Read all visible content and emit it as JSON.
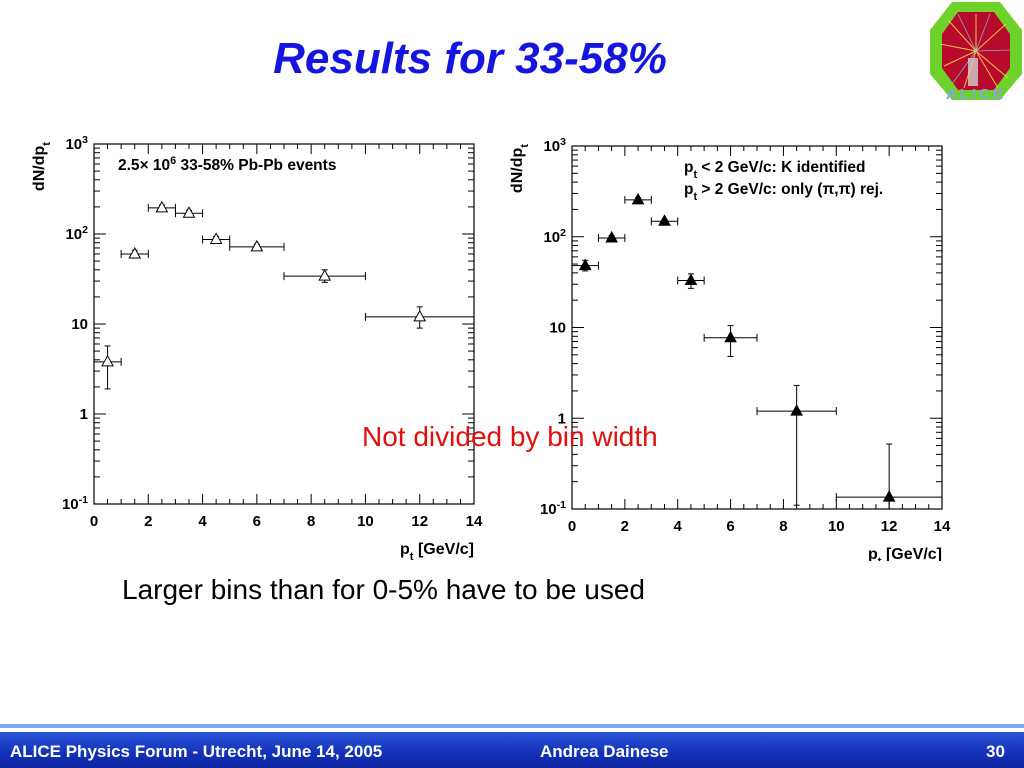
{
  "slide": {
    "title": "Results for 33-58%",
    "note": "Not divided by bin width",
    "caption": "Larger bins than for 0-5% have to be used",
    "logo_text": "ALICE"
  },
  "footer": {
    "left": "ALICE Physics Forum - Utrecht,  June 14, 2005",
    "author": "Andrea Dainese",
    "page": "30"
  },
  "colors": {
    "title": "#1515e0",
    "note": "#e01010",
    "footer": "#1a3cc8"
  },
  "chart_data": [
    {
      "type": "scatter",
      "scale": "log-y",
      "marker": "open-triangle",
      "xlabel": "p",
      "xlabel_sub": "t",
      "xlabel_rest": " [GeV/c]",
      "ylabel": "dN/dp",
      "ylabel_sub": "t",
      "xlim": [
        0,
        14
      ],
      "ylim": [
        0.1,
        1000
      ],
      "x_ticks": [
        "0",
        "2",
        "4",
        "6",
        "8",
        "10",
        "12",
        "14"
      ],
      "y_ticks": [
        {
          "v": 0.1,
          "base": "10",
          "exp": "-1"
        },
        {
          "v": 1,
          "base": "1",
          "exp": ""
        },
        {
          "v": 10,
          "base": "10",
          "exp": ""
        },
        {
          "v": 100,
          "base": "10",
          "exp": "2"
        },
        {
          "v": 1000,
          "base": "10",
          "exp": "3"
        }
      ],
      "legend": [
        {
          "parts": [
            [
              "2.5",
              ""
            ],
            [
              "× 10",
              ""
            ],
            [
              "6",
              "sup"
            ],
            [
              "   33-58% Pb-Pb events",
              ""
            ]
          ]
        }
      ],
      "points": [
        {
          "x": 0.5,
          "y": 3.8,
          "xlo": 0,
          "xhi": 1,
          "ylo": 1.9,
          "yhi": 5.7
        },
        {
          "x": 1.5,
          "y": 60,
          "xlo": 1,
          "xhi": 2,
          "ylo": 54,
          "yhi": 66
        },
        {
          "x": 2.5,
          "y": 195,
          "xlo": 2,
          "xhi": 3,
          "ylo": 180,
          "yhi": 210
        },
        {
          "x": 3.5,
          "y": 170,
          "xlo": 3,
          "xhi": 4,
          "ylo": 157,
          "yhi": 183
        },
        {
          "x": 4.5,
          "y": 87,
          "xlo": 4,
          "xhi": 5,
          "ylo": 80,
          "yhi": 94
        },
        {
          "x": 6,
          "y": 72,
          "xlo": 5,
          "xhi": 7,
          "ylo": 67,
          "yhi": 77
        },
        {
          "x": 8.5,
          "y": 34,
          "xlo": 7,
          "xhi": 10,
          "ylo": 29,
          "yhi": 40
        },
        {
          "x": 12,
          "y": 12,
          "xlo": 10,
          "xhi": 14,
          "ylo": 9,
          "yhi": 15.5
        }
      ]
    },
    {
      "type": "scatter",
      "scale": "log-y",
      "marker": "filled-triangle",
      "xlabel": "p",
      "xlabel_sub": "t",
      "xlabel_rest": " [GeV/c]",
      "ylabel": "dN/dp",
      "ylabel_sub": "t",
      "xlim": [
        0,
        14
      ],
      "ylim": [
        0.1,
        1000
      ],
      "x_ticks": [
        "0",
        "2",
        "4",
        "6",
        "8",
        "10",
        "12",
        "14"
      ],
      "y_ticks": [
        {
          "v": 0.1,
          "base": "10",
          "exp": "-1"
        },
        {
          "v": 1,
          "base": "1",
          "exp": ""
        },
        {
          "v": 10,
          "base": "10",
          "exp": ""
        },
        {
          "v": 100,
          "base": "10",
          "exp": "2"
        },
        {
          "v": 1000,
          "base": "10",
          "exp": "3"
        }
      ],
      "legend": [
        {
          "parts": [
            [
              "p",
              ""
            ],
            [
              "t",
              "sub"
            ],
            [
              " < 2 GeV/c: K identified",
              ""
            ]
          ]
        },
        {
          "parts": [
            [
              "p",
              ""
            ],
            [
              "t",
              "sub"
            ],
            [
              " > 2 GeV/c: only (",
              ""
            ],
            [
              "π,π",
              ""
            ],
            [
              ") rej.",
              ""
            ]
          ]
        }
      ],
      "points": [
        {
          "x": 0.5,
          "y": 48,
          "xlo": 0,
          "xhi": 1,
          "ylo": 42,
          "yhi": 55
        },
        {
          "x": 1.5,
          "y": 97,
          "xlo": 1,
          "xhi": 2,
          "ylo": 92,
          "yhi": 103
        },
        {
          "x": 2.5,
          "y": 255,
          "xlo": 2,
          "xhi": 3,
          "ylo": 242,
          "yhi": 268
        },
        {
          "x": 3.5,
          "y": 148,
          "xlo": 3,
          "xhi": 4,
          "ylo": 140,
          "yhi": 156
        },
        {
          "x": 4.5,
          "y": 33,
          "xlo": 4,
          "xhi": 5,
          "ylo": 27,
          "yhi": 39
        },
        {
          "x": 6,
          "y": 7.7,
          "xlo": 5,
          "xhi": 7,
          "ylo": 4.8,
          "yhi": 10.5
        },
        {
          "x": 8.5,
          "y": 1.2,
          "xlo": 7,
          "xhi": 10,
          "ylo": 0.11,
          "yhi": 2.3
        },
        {
          "x": 12,
          "y": 0.135,
          "xlo": 10,
          "xhi": 14,
          "ylo": 0.1,
          "yhi": 0.52
        }
      ]
    }
  ]
}
